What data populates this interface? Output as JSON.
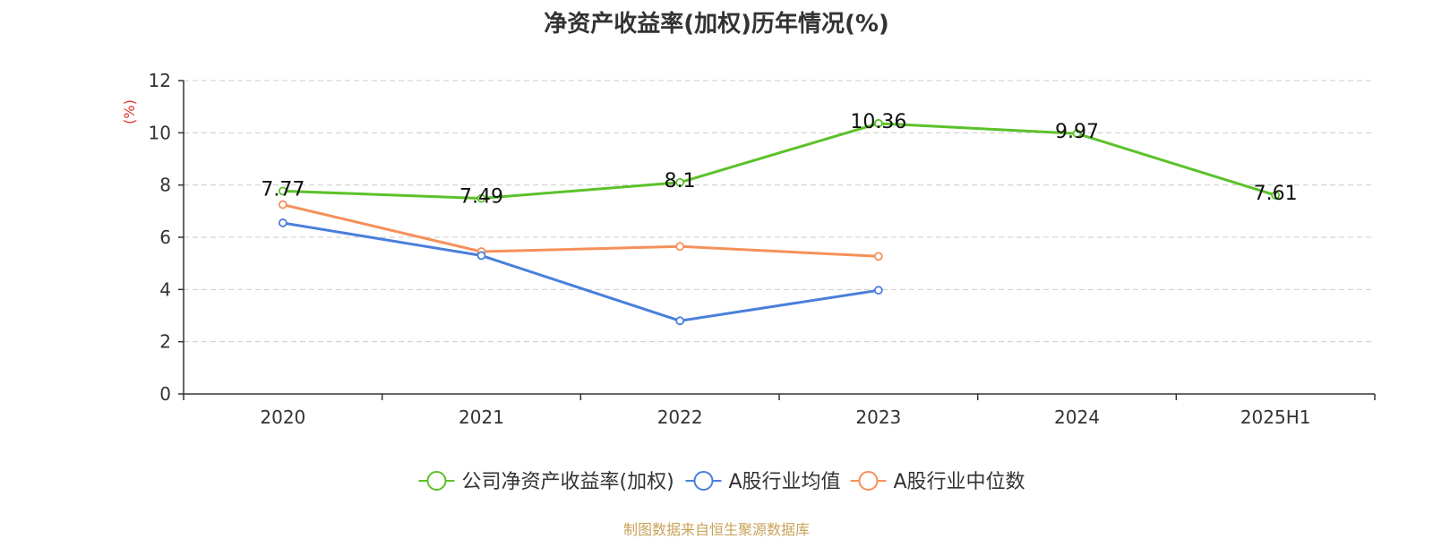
{
  "title": "净资产收益率(加权)历年情况(%)",
  "source": "制图数据来自恒生聚源数据库",
  "colors": {
    "company": "#5bc12a",
    "industry_avg": "#4a7fdc",
    "industry_median": "#f6905a",
    "unit_label": "#e8332a",
    "source_text": "#c9a35a"
  },
  "chart_data": {
    "type": "line",
    "title": "净资产收益率(加权)历年情况(%)",
    "ylabel": "(%)",
    "xlabel": "",
    "ylim": [
      0,
      12
    ],
    "yticks": [
      0,
      2,
      4,
      6,
      8,
      10,
      12
    ],
    "grid": true,
    "legend_position": "bottom",
    "categories": [
      "2020",
      "2021",
      "2022",
      "2023",
      "2024",
      "2025H1"
    ],
    "series": [
      {
        "name": "公司净资产收益率(加权)",
        "color": "#5bc12a",
        "values": [
          7.77,
          7.49,
          8.1,
          10.36,
          9.97,
          7.61
        ],
        "labels": [
          "7.77",
          "7.49",
          "8.1",
          "10.36",
          "9.97",
          "7.61"
        ],
        "show_labels": true
      },
      {
        "name": "A股行业均值",
        "color": "#4a7fdc",
        "values": [
          6.55,
          5.3,
          2.8,
          3.97,
          null,
          null
        ],
        "show_labels": false
      },
      {
        "name": "A股行业中位数",
        "color": "#f6905a",
        "values": [
          7.25,
          5.45,
          5.65,
          5.27,
          null,
          null
        ],
        "show_labels": false
      }
    ]
  }
}
